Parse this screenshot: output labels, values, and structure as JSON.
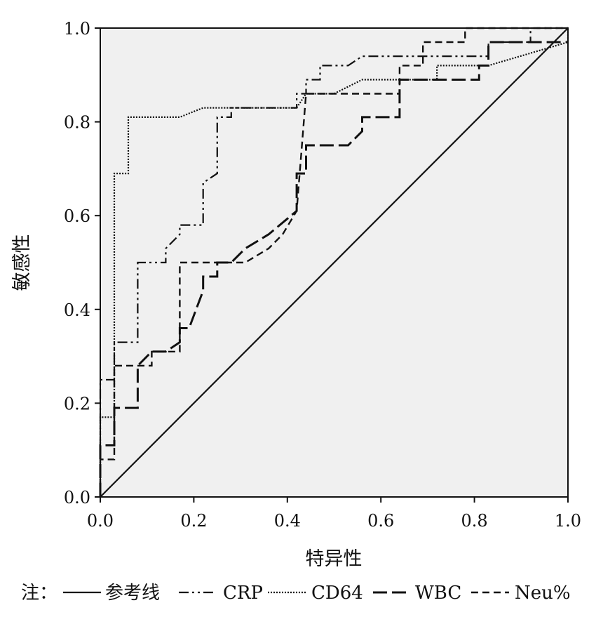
{
  "chart_data": {
    "type": "line",
    "title": "",
    "xlabel": "特异性",
    "ylabel": "敏感性",
    "xlim": [
      0,
      1
    ],
    "ylim": [
      0,
      1
    ],
    "xticks": [
      "0.0",
      "0.2",
      "0.4",
      "0.6",
      "0.8",
      "1.0"
    ],
    "yticks": [
      "0.0",
      "0.2",
      "0.4",
      "0.6",
      "0.8",
      "1.0"
    ],
    "grid": false,
    "legend_position": "bottom",
    "legend_prefix": "注：",
    "series": [
      {
        "name": "参考线",
        "style": "solid",
        "x": [
          0,
          1
        ],
        "y": [
          0,
          1
        ]
      },
      {
        "name": "CRP",
        "style": "dashdotdot",
        "x": [
          0,
          0,
          0.03,
          0.03,
          0.08,
          0.08,
          0.11,
          0.11,
          0.14,
          0.14,
          0.17,
          0.17,
          0.19,
          0.19,
          0.22,
          0.22,
          0.25,
          0.25,
          0.28,
          0.28,
          0.31,
          0.31,
          0.36,
          0.36,
          0.42,
          0.42,
          0.44,
          0.44,
          0.47,
          0.47,
          0.53,
          0.53,
          0.56,
          0.56,
          0.69,
          0.69,
          0.83,
          0.83,
          0.92,
          0.92,
          1.0
        ],
        "y": [
          0,
          0.25,
          0.25,
          0.33,
          0.33,
          0.5,
          0.5,
          0.5,
          0.5,
          0.53,
          0.56,
          0.58,
          0.58,
          0.58,
          0.58,
          0.67,
          0.69,
          0.81,
          0.81,
          0.83,
          0.83,
          0.83,
          0.83,
          0.83,
          0.83,
          0.86,
          0.86,
          0.89,
          0.89,
          0.92,
          0.92,
          0.92,
          0.94,
          0.94,
          0.94,
          0.94,
          0.94,
          0.97,
          0.97,
          1.0,
          1.0
        ]
      },
      {
        "name": "CD64",
        "style": "dotted",
        "x": [
          0,
          0,
          0.03,
          0.03,
          0.06,
          0.06,
          0.17,
          0.22,
          0.25,
          0.28,
          0.42,
          0.42,
          0.44,
          0.5,
          0.56,
          0.64,
          0.72,
          0.72,
          0.83,
          0.83,
          1.0,
          1.0
        ],
        "y": [
          0,
          0.17,
          0.17,
          0.69,
          0.69,
          0.81,
          0.81,
          0.83,
          0.83,
          0.83,
          0.83,
          0.83,
          0.86,
          0.86,
          0.89,
          0.89,
          0.89,
          0.92,
          0.92,
          0.92,
          0.97,
          1.0
        ]
      },
      {
        "name": "WBC",
        "style": "longdash",
        "x": [
          0,
          0,
          0.03,
          0.03,
          0.08,
          0.08,
          0.11,
          0.14,
          0.17,
          0.17,
          0.19,
          0.22,
          0.22,
          0.25,
          0.25,
          0.28,
          0.31,
          0.36,
          0.42,
          0.42,
          0.44,
          0.44,
          0.53,
          0.56,
          0.56,
          0.64,
          0.64,
          0.81,
          0.81,
          0.83,
          0.83,
          1.0
        ],
        "y": [
          0,
          0.11,
          0.11,
          0.19,
          0.19,
          0.28,
          0.31,
          0.31,
          0.33,
          0.36,
          0.36,
          0.44,
          0.47,
          0.47,
          0.5,
          0.5,
          0.53,
          0.56,
          0.61,
          0.69,
          0.69,
          0.75,
          0.75,
          0.78,
          0.81,
          0.81,
          0.89,
          0.89,
          0.92,
          0.92,
          0.97,
          0.97
        ]
      },
      {
        "name": "Neu%",
        "style": "dash",
        "x": [
          0,
          0,
          0.03,
          0.03,
          0.08,
          0.11,
          0.11,
          0.17,
          0.17,
          0.19,
          0.22,
          0.31,
          0.36,
          0.39,
          0.42,
          0.44,
          0.5,
          0.53,
          0.64,
          0.64,
          0.69,
          0.69,
          0.78,
          0.78,
          1.0
        ],
        "y": [
          0,
          0.08,
          0.08,
          0.28,
          0.28,
          0.28,
          0.31,
          0.31,
          0.5,
          0.5,
          0.5,
          0.5,
          0.53,
          0.56,
          0.61,
          0.86,
          0.86,
          0.86,
          0.86,
          0.92,
          0.92,
          0.97,
          0.97,
          1.0,
          1.0
        ]
      }
    ]
  }
}
